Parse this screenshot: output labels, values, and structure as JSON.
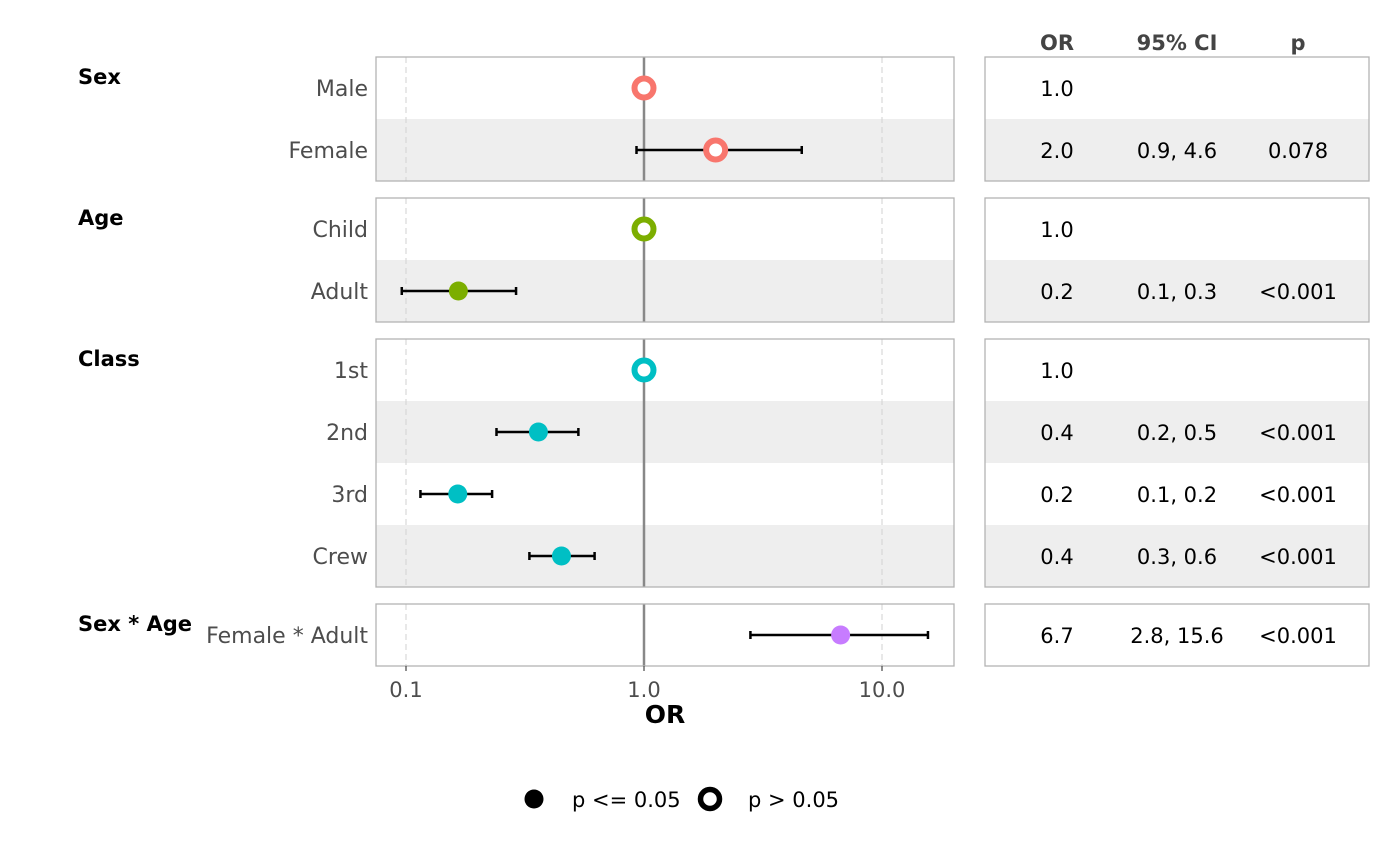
{
  "chart_data": {
    "type": "forest",
    "scale": "log",
    "xlim": [
      0.08,
      20
    ],
    "xticks": [
      0.1,
      1.0,
      10.0
    ],
    "xtick_labels": [
      "0.1",
      "1.0",
      "10.0"
    ],
    "xlabel": "OR",
    "reference_value": 1.0,
    "table_headers": [
      "OR",
      "95% CI",
      "p"
    ],
    "groups": [
      {
        "name": "Sex",
        "color": "#F8766D",
        "rows": [
          {
            "label": "Male",
            "or": 1.0,
            "lo": null,
            "hi": null,
            "or_text": "1.0",
            "ci_text": "",
            "p_text": "",
            "significant": false
          },
          {
            "label": "Female",
            "or": 2.0,
            "lo": 0.93,
            "hi": 4.6,
            "or_text": "2.0",
            "ci_text": "0.9, 4.6",
            "p_text": "0.078",
            "significant": false
          }
        ]
      },
      {
        "name": "Age",
        "color": "#7CAE00",
        "rows": [
          {
            "label": "Child",
            "or": 1.0,
            "lo": null,
            "hi": null,
            "or_text": "1.0",
            "ci_text": "",
            "p_text": "",
            "significant": false
          },
          {
            "label": "Adult",
            "or": 0.166,
            "lo": 0.096,
            "hi": 0.29,
            "or_text": "0.2",
            "ci_text": "0.1, 0.3",
            "p_text": "<0.001",
            "significant": true
          }
        ]
      },
      {
        "name": "Class",
        "color": "#00BFC4",
        "rows": [
          {
            "label": "1st",
            "or": 1.0,
            "lo": null,
            "hi": null,
            "or_text": "1.0",
            "ci_text": "",
            "p_text": "",
            "significant": false
          },
          {
            "label": "2nd",
            "or": 0.36,
            "lo": 0.24,
            "hi": 0.53,
            "or_text": "0.4",
            "ci_text": "0.2, 0.5",
            "p_text": "<0.001",
            "significant": true
          },
          {
            "label": "3rd",
            "or": 0.165,
            "lo": 0.115,
            "hi": 0.23,
            "or_text": "0.2",
            "ci_text": "0.1, 0.2",
            "p_text": "<0.001",
            "significant": true
          },
          {
            "label": "Crew",
            "or": 0.45,
            "lo": 0.33,
            "hi": 0.62,
            "or_text": "0.4",
            "ci_text": "0.3, 0.6",
            "p_text": "<0.001",
            "significant": true
          }
        ]
      },
      {
        "name": "Sex * Age",
        "color": "#C77CFF",
        "rows": [
          {
            "label": "Female * Adult",
            "or": 6.7,
            "lo": 2.8,
            "hi": 15.6,
            "or_text": "6.7",
            "ci_text": "2.8, 15.6",
            "p_text": "<0.001",
            "significant": true
          }
        ]
      }
    ],
    "legend": {
      "placement": "bottom",
      "items": [
        {
          "label": "p <= 0.05",
          "style": "filled"
        },
        {
          "label": "p > 0.05",
          "style": "hollow"
        }
      ]
    }
  }
}
